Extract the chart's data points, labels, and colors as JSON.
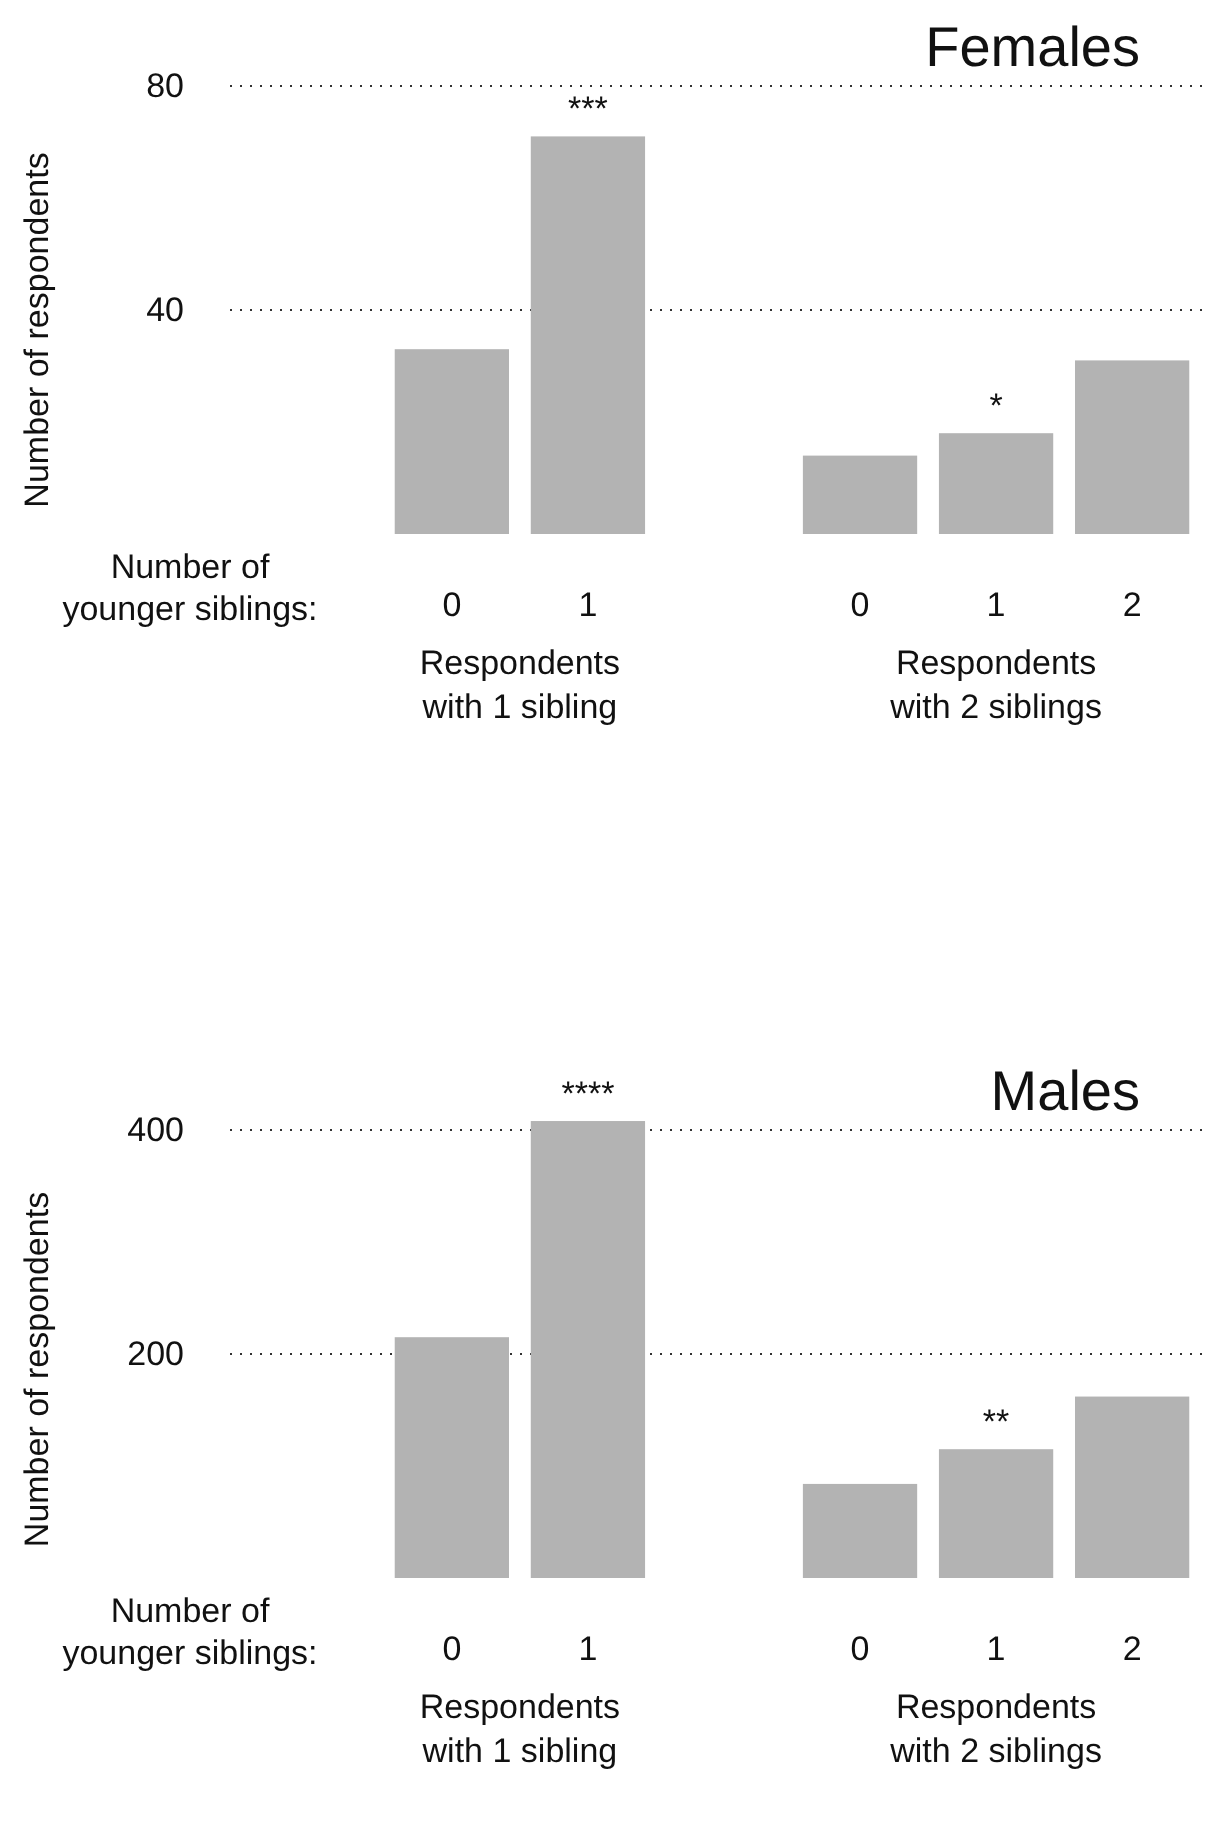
{
  "chart_data": [
    {
      "type": "bar",
      "title": "Females",
      "xlabel": "Number of younger siblings:",
      "ylabel": "Number of respondents",
      "categories": [
        "0",
        "1",
        null,
        "0",
        "1",
        "2"
      ],
      "values": [
        33,
        71,
        null,
        14,
        18,
        31
      ],
      "color": "#b3b3b3",
      "value_labels": [
        null,
        "***",
        null,
        null,
        "*",
        null
      ],
      "ylim": [
        0,
        80
      ],
      "yticks": [
        40,
        80
      ],
      "grid": "y",
      "annotations": [
        "Respondents with 1 sibling",
        "Respondents with 2 siblings"
      ]
    },
    {
      "type": "bar",
      "title": "Males",
      "xlabel": "Number of younger siblings:",
      "ylabel": "Number of respondents",
      "categories": [
        "0",
        "1",
        null,
        "0",
        "1",
        "2"
      ],
      "values": [
        215,
        408,
        null,
        84,
        115,
        162
      ],
      "color": "#b3b3b3",
      "value_labels": [
        null,
        "****",
        null,
        null,
        "**",
        null
      ],
      "ylim": [
        0,
        408
      ],
      "yticks": [
        200,
        400
      ],
      "grid": "y",
      "annotations": [
        "Respondents with 1 sibling",
        "Respondents with 2 siblings"
      ]
    }
  ]
}
